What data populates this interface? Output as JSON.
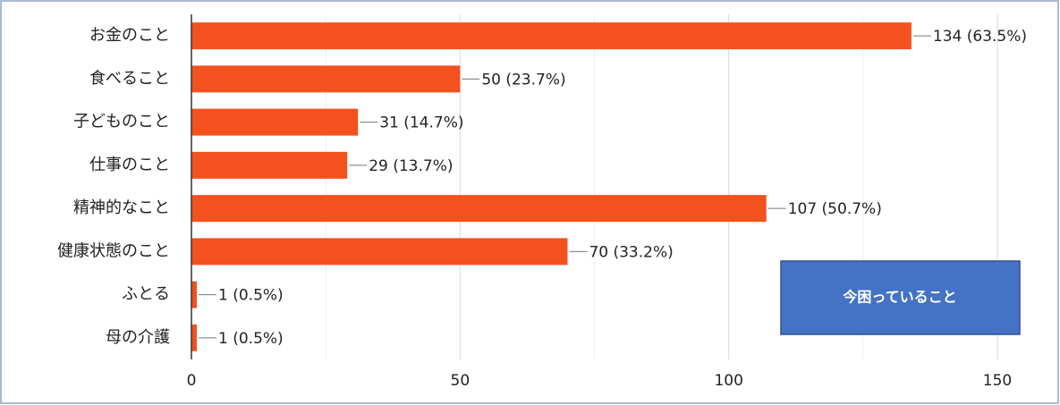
{
  "chart_data": {
    "type": "bar",
    "orientation": "horizontal",
    "categories": [
      "お金のこと",
      "食べること",
      "子どものこと",
      "仕事のこと",
      "精神的なこと",
      "健康状態のこと",
      "ふとる",
      "母の介護"
    ],
    "values": [
      134,
      50,
      31,
      29,
      107,
      70,
      1,
      1
    ],
    "value_labels": [
      "134 (63.5%)",
      "50 (23.7%)",
      "31 (14.7%)",
      "29 (13.7%)",
      "107 (50.7%)",
      "70 (33.2%)",
      "1 (0.5%)",
      "1 (0.5%)"
    ],
    "color": "#f4511e",
    "xlim": [
      0,
      150
    ],
    "xticks": [
      0,
      50,
      100,
      150
    ],
    "minor_xticks": [
      25,
      75,
      125
    ],
    "grid": true,
    "annotation": "今困っていること"
  }
}
